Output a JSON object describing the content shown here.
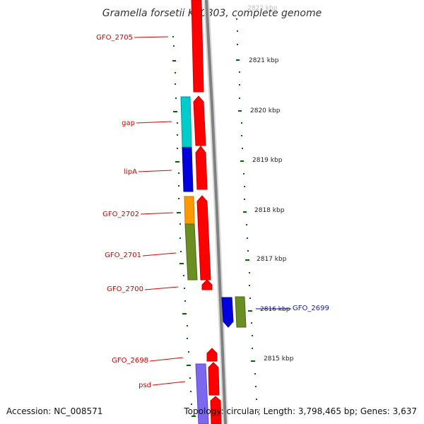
{
  "title": "Gramella forsetii KT0803, complete genome",
  "colors": {
    "cds": "#ff0000",
    "cog_info_processing": "#00cccc",
    "cog_metabolism_blue": "#0000dd",
    "cog_orange": "#ff9900",
    "cog_olive": "#6b8e23",
    "cog_lavender": "#7b68ee",
    "backbone": "#808080",
    "tick": "#006600",
    "label_line_red": "#dd0000",
    "label_line_blue": "#0000aa"
  },
  "kbp_labels": [
    "2822 kbp",
    "2821 kbp",
    "2820 kbp",
    "2819 kbp",
    "2818 kbp",
    "2817 kbp",
    "2816 kbp",
    "2815 kbp"
  ],
  "gene_labels": [
    "GFO_2705",
    "gap",
    "lipA",
    "GFO_2702",
    "GFO_2701",
    "GFO_2700",
    "GFO_2698",
    "psd"
  ],
  "reverse_gene_label": "GFO_2699",
  "footer": {
    "accession": "Accession: NC_008571",
    "stats": "Topology: circular; Length: 3,798,465 bp; Genes: 3,637"
  }
}
